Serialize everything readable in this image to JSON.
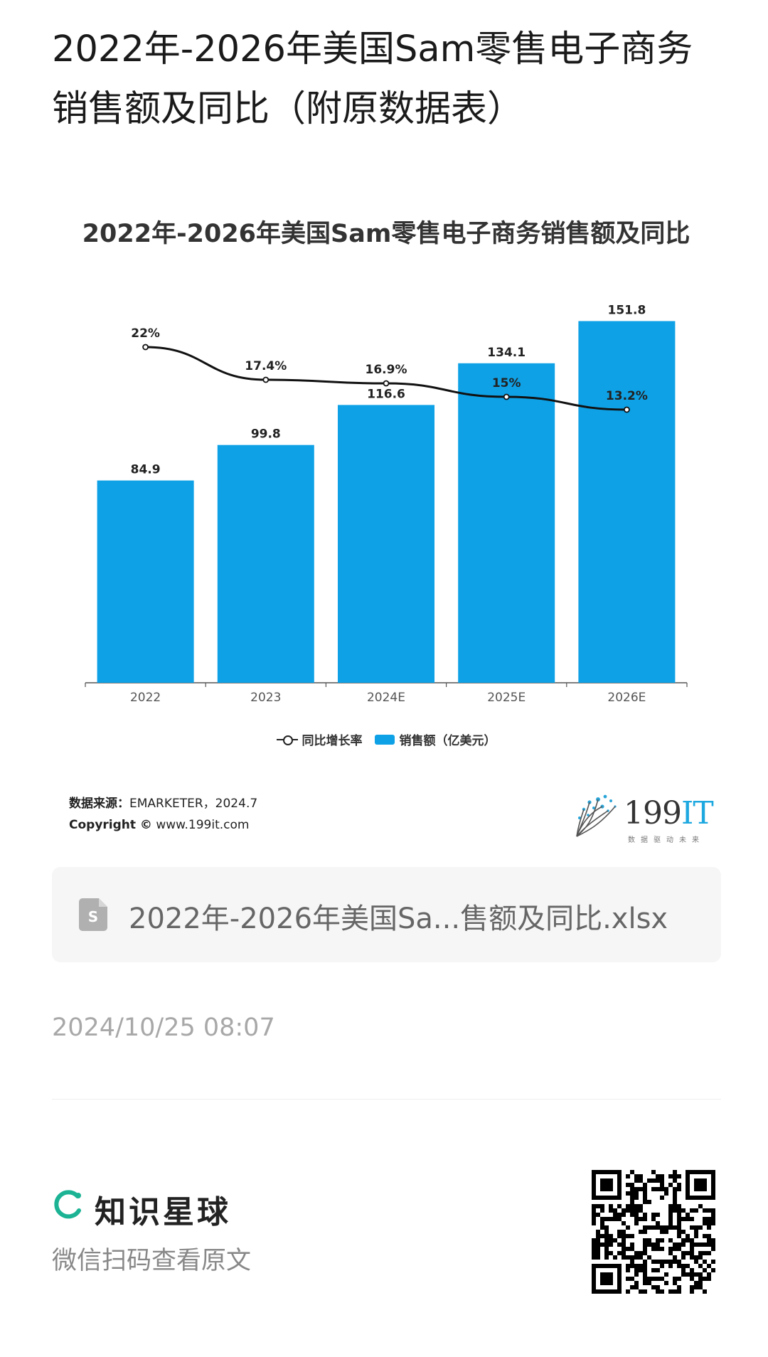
{
  "page": {
    "title": "2022年-2026年美国Sam零售电子商务销售额及同比（附原数据表）"
  },
  "chart_data": {
    "type": "bar",
    "title": "2022年-2026年美国Sam零售电子商务销售额及同比",
    "categories": [
      "2022",
      "2023",
      "2024E",
      "2025E",
      "2026E"
    ],
    "series": [
      {
        "name": "销售额（亿美元）",
        "type": "bar",
        "values": [
          84.9,
          99.8,
          116.6,
          134.1,
          151.8
        ],
        "labels": [
          "84.9",
          "99.8",
          "116.6",
          "134.1",
          "151.8"
        ]
      },
      {
        "name": "同比增长率",
        "type": "line",
        "values": [
          22,
          17.4,
          16.9,
          15,
          13.2
        ],
        "labels": [
          "22%",
          "17.4%",
          "16.9%",
          "15%",
          "13.2%"
        ]
      }
    ],
    "legend_position": "bottom",
    "grid": false,
    "bar_color": "#0ea1e6",
    "line_color": "#111111"
  },
  "legend": {
    "line_label": "同比增长率",
    "bar_label": "销售额（亿美元）"
  },
  "source": {
    "label": "数据来源：",
    "value": "EMARKETER，2024.7",
    "copyright_label": "Copyright ©",
    "copyright_value": "www.199it.com"
  },
  "logo": {
    "text_a": "199",
    "text_b": "IT",
    "tagline": "数据驱动未来"
  },
  "file": {
    "icon": "spreadsheet-file-icon",
    "name": "2022年-2026年美国Sa...售额及同比.xlsx"
  },
  "timestamp": "2024/10/25 08:07",
  "footer": {
    "brand_icon": "zhishi-xingqiu-logo-icon",
    "brand_name": "知识星球",
    "scan_text": "微信扫码查看原文",
    "qr": "qr-code-icon"
  },
  "colors": {
    "bar": "#0ea1e6",
    "brand_green": "#1bb394",
    "file_card_bg": "#f6f6f6"
  }
}
